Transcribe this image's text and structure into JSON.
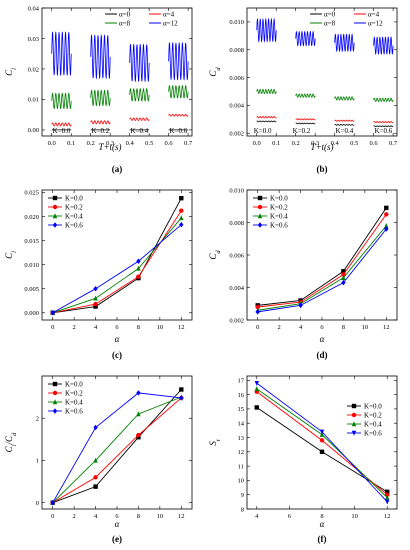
{
  "chart_data": [
    {
      "id": "a",
      "type": "line",
      "caption": "(a)",
      "ylabel": "C_l",
      "xlabel": "T+t(s)",
      "xlim": [
        -0.05,
        0.72
      ],
      "ylim": [
        -0.002,
        0.04
      ],
      "xticks": [
        "0.0",
        "0.1",
        "0.2",
        "0.3",
        "0.4",
        "0.5",
        "0.6",
        "0.7"
      ],
      "xtick_values": [
        0,
        0.1,
        0.2,
        0.3,
        0.4,
        0.5,
        0.6,
        0.7
      ],
      "yticks": [
        "0.00",
        "0.01",
        "0.02",
        "0.03",
        "0.04"
      ],
      "ytick_values": [
        0,
        0.01,
        0.02,
        0.03,
        0.04
      ],
      "legend": [
        {
          "name": "α=0",
          "color": "#000000"
        },
        {
          "name": "α=4",
          "color": "#ff0000"
        },
        {
          "name": "α=8",
          "color": "#008000"
        },
        {
          "name": "α=12",
          "color": "#0000ff"
        }
      ],
      "k_labels": [
        {
          "text": "K=0.0",
          "x": 0.05
        },
        {
          "text": "K=0.2",
          "x": 0.25
        },
        {
          "text": "K=0.4",
          "x": 0.45
        },
        {
          "text": "K=0.6",
          "x": 0.65
        }
      ],
      "segments": [
        {
          "x0": 0.0,
          "x1": 0.1,
          "series": [
            {
              "color": "#0000ff",
              "mean": 0.025,
              "amp": 0.007,
              "cycles": 6
            },
            {
              "color": "#008000",
              "mean": 0.0095,
              "amp": 0.0025,
              "cycles": 6
            },
            {
              "color": "#ff0000",
              "mean": 0.0018,
              "amp": 0.0005,
              "cycles": 6
            },
            {
              "color": "#000000",
              "mean": 0.0,
              "amp": 0.0,
              "cycles": 6
            }
          ]
        },
        {
          "x0": 0.2,
          "x1": 0.3,
          "series": [
            {
              "color": "#0000ff",
              "mean": 0.024,
              "amp": 0.007,
              "cycles": 6
            },
            {
              "color": "#008000",
              "mean": 0.0105,
              "amp": 0.0025,
              "cycles": 6
            },
            {
              "color": "#ff0000",
              "mean": 0.0025,
              "amp": 0.0005,
              "cycles": 6
            },
            {
              "color": "#000000",
              "mean": 0.0,
              "amp": 0.0,
              "cycles": 6
            }
          ]
        },
        {
          "x0": 0.4,
          "x1": 0.5,
          "series": [
            {
              "color": "#0000ff",
              "mean": 0.022,
              "amp": 0.006,
              "cycles": 6
            },
            {
              "color": "#008000",
              "mean": 0.0115,
              "amp": 0.002,
              "cycles": 6
            },
            {
              "color": "#ff0000",
              "mean": 0.0035,
              "amp": 0.0004,
              "cycles": 6
            },
            {
              "color": "#000000",
              "mean": 0.0,
              "amp": 0.0,
              "cycles": 6
            }
          ]
        },
        {
          "x0": 0.6,
          "x1": 0.7,
          "series": [
            {
              "color": "#0000ff",
              "mean": 0.0225,
              "amp": 0.006,
              "cycles": 6
            },
            {
              "color": "#008000",
              "mean": 0.0125,
              "amp": 0.002,
              "cycles": 6
            },
            {
              "color": "#ff0000",
              "mean": 0.0048,
              "amp": 0.0003,
              "cycles": 6
            },
            {
              "color": "#000000",
              "mean": 0.0,
              "amp": 0.0,
              "cycles": 6
            }
          ]
        }
      ]
    },
    {
      "id": "b",
      "type": "line",
      "caption": "(b)",
      "ylabel": "C_d",
      "xlabel": "T+t(s)",
      "xlim": [
        -0.05,
        0.72
      ],
      "ylim": [
        0.0018,
        0.011
      ],
      "xticks": [
        "0.0",
        "0.1",
        "0.2",
        "0.3",
        "0.4",
        "0.5",
        "0.6",
        "0.7"
      ],
      "xtick_values": [
        0,
        0.1,
        0.2,
        0.3,
        0.4,
        0.5,
        0.6,
        0.7
      ],
      "yticks": [
        "0.002",
        "0.004",
        "0.006",
        "0.008",
        "0.010"
      ],
      "ytick_values": [
        0.002,
        0.004,
        0.006,
        0.008,
        0.01
      ],
      "legend": [
        {
          "name": "α=0",
          "color": "#000000"
        },
        {
          "name": "α=4",
          "color": "#ff0000"
        },
        {
          "name": "α=8",
          "color": "#008000"
        },
        {
          "name": "α=12",
          "color": "#0000ff"
        }
      ],
      "k_labels": [
        {
          "text": "K=0.0",
          "x": 0.03
        },
        {
          "text": "K=0.2",
          "x": 0.23
        },
        {
          "text": "K=0.4",
          "x": 0.45
        },
        {
          "text": "K=0.6",
          "x": 0.65
        }
      ],
      "segments": [
        {
          "x0": 0.0,
          "x1": 0.1,
          "series": [
            {
              "color": "#0000ff",
              "mean": 0.0094,
              "amp": 0.0008,
              "cycles": 7
            },
            {
              "color": "#008000",
              "mean": 0.005,
              "amp": 0.00015,
              "cycles": 7
            },
            {
              "color": "#ff0000",
              "mean": 0.00315,
              "amp": 5e-05,
              "cycles": 7
            },
            {
              "color": "#000000",
              "mean": 0.00285,
              "amp": 3e-05,
              "cycles": 7
            }
          ]
        },
        {
          "x0": 0.2,
          "x1": 0.3,
          "series": [
            {
              "color": "#0000ff",
              "mean": 0.0088,
              "amp": 0.0005,
              "cycles": 7
            },
            {
              "color": "#008000",
              "mean": 0.0047,
              "amp": 0.00012,
              "cycles": 7
            },
            {
              "color": "#ff0000",
              "mean": 0.003,
              "amp": 4e-05,
              "cycles": 7
            },
            {
              "color": "#000000",
              "mean": 0.0027,
              "amp": 3e-05,
              "cycles": 7
            }
          ]
        },
        {
          "x0": 0.4,
          "x1": 0.5,
          "series": [
            {
              "color": "#0000ff",
              "mean": 0.0085,
              "amp": 0.0006,
              "cycles": 7
            },
            {
              "color": "#008000",
              "mean": 0.0045,
              "amp": 0.00012,
              "cycles": 7
            },
            {
              "color": "#ff0000",
              "mean": 0.0029,
              "amp": 4e-05,
              "cycles": 7
            },
            {
              "color": "#000000",
              "mean": 0.0026,
              "amp": 3e-05,
              "cycles": 7
            }
          ]
        },
        {
          "x0": 0.6,
          "x1": 0.7,
          "series": [
            {
              "color": "#0000ff",
              "mean": 0.0083,
              "amp": 0.0006,
              "cycles": 7
            },
            {
              "color": "#008000",
              "mean": 0.0044,
              "amp": 0.00012,
              "cycles": 7
            },
            {
              "color": "#ff0000",
              "mean": 0.0028,
              "amp": 4e-05,
              "cycles": 7
            },
            {
              "color": "#000000",
              "mean": 0.0025,
              "amp": 3e-05,
              "cycles": 7
            }
          ]
        }
      ]
    },
    {
      "id": "c",
      "type": "line",
      "caption": "(c)",
      "ylabel": "C_l",
      "xlabel": "α",
      "xlim": [
        -1,
        13
      ],
      "ylim": [
        -0.0015,
        0.0255
      ],
      "xticks": [
        "0",
        "2",
        "4",
        "6",
        "8",
        "10",
        "12"
      ],
      "xtick_values": [
        0,
        2,
        4,
        6,
        8,
        10,
        12
      ],
      "yticks": [
        "0.000",
        "0.005",
        "0.010",
        "0.015",
        "0.020",
        "0.025"
      ],
      "ytick_values": [
        0,
        0.005,
        0.01,
        0.015,
        0.02,
        0.025
      ],
      "legend_pos": "top-left",
      "x": [
        0,
        4,
        8,
        12
      ],
      "series": [
        {
          "name": "K=0.0",
          "color": "#000000",
          "marker": "square",
          "values": [
            0.0,
            0.0013,
            0.0072,
            0.0238
          ]
        },
        {
          "name": "K=0.2",
          "color": "#ff0000",
          "marker": "circle",
          "values": [
            0.0,
            0.0018,
            0.0075,
            0.0212
          ]
        },
        {
          "name": "K=0.4",
          "color": "#008000",
          "marker": "triangle",
          "values": [
            0.0,
            0.003,
            0.0092,
            0.0197
          ]
        },
        {
          "name": "K=0.6",
          "color": "#0000ff",
          "marker": "diamond",
          "values": [
            0.0,
            0.005,
            0.0107,
            0.0183
          ]
        }
      ]
    },
    {
      "id": "d",
      "type": "line",
      "caption": "(d)",
      "ylabel": "C_d",
      "xlabel": "α",
      "xlim": [
        -1,
        13
      ],
      "ylim": [
        0.002,
        0.01
      ],
      "xticks": [
        "0",
        "2",
        "4",
        "6",
        "8",
        "10",
        "12"
      ],
      "xtick_values": [
        0,
        2,
        4,
        6,
        8,
        10,
        12
      ],
      "yticks": [
        "0.002",
        "0.004",
        "0.006",
        "0.008",
        "0.010"
      ],
      "ytick_values": [
        0.002,
        0.004,
        0.006,
        0.008,
        0.01
      ],
      "legend_pos": "top-left",
      "x": [
        0,
        4,
        8,
        12
      ],
      "series": [
        {
          "name": "K=0.0",
          "color": "#000000",
          "marker": "square",
          "values": [
            0.0029,
            0.0032,
            0.005,
            0.0089
          ]
        },
        {
          "name": "K=0.2",
          "color": "#ff0000",
          "marker": "circle",
          "values": [
            0.0028,
            0.0031,
            0.0048,
            0.0085
          ]
        },
        {
          "name": "K=0.4",
          "color": "#008000",
          "marker": "triangle",
          "values": [
            0.0026,
            0.003,
            0.0046,
            0.0078
          ]
        },
        {
          "name": "K=0.6",
          "color": "#0000ff",
          "marker": "diamond",
          "values": [
            0.0025,
            0.0029,
            0.0043,
            0.0076
          ]
        }
      ]
    },
    {
      "id": "e",
      "type": "line",
      "caption": "(e)",
      "ylabel": "C_l/C_d",
      "xlabel": "α",
      "xlim": [
        -1,
        13
      ],
      "ylim": [
        -0.15,
        3.0
      ],
      "xticks": [
        "0",
        "2",
        "4",
        "6",
        "8",
        "10",
        "12"
      ],
      "xtick_values": [
        0,
        2,
        4,
        6,
        8,
        10,
        12
      ],
      "yticks": [
        "0",
        "1",
        "2"
      ],
      "ytick_values": [
        0,
        1,
        2
      ],
      "legend_pos": "top-left",
      "x": [
        0,
        4,
        8,
        12
      ],
      "series": [
        {
          "name": "K=0.0",
          "color": "#000000",
          "marker": "square",
          "values": [
            0.0,
            0.38,
            1.55,
            2.68
          ]
        },
        {
          "name": "K=0.2",
          "color": "#ff0000",
          "marker": "circle",
          "values": [
            0.0,
            0.6,
            1.6,
            2.48
          ]
        },
        {
          "name": "K=0.4",
          "color": "#008000",
          "marker": "triangle",
          "values": [
            0.0,
            1.0,
            2.1,
            2.5
          ]
        },
        {
          "name": "K=0.6",
          "color": "#0000ff",
          "marker": "diamond",
          "values": [
            0.0,
            1.78,
            2.6,
            2.48
          ]
        }
      ]
    },
    {
      "id": "f",
      "type": "line",
      "caption": "(f)",
      "ylabel": "S_t",
      "xlabel": "α",
      "xlim": [
        3.4,
        12.6
      ],
      "ylim": [
        8.0,
        17.3
      ],
      "xticks": [
        "4",
        "6",
        "8",
        "10",
        "12"
      ],
      "xtick_values": [
        4,
        6,
        8,
        10,
        12
      ],
      "yticks": [
        "8",
        "9",
        "10",
        "11",
        "12",
        "13",
        "14",
        "15",
        "16",
        "17"
      ],
      "ytick_values": [
        8,
        9,
        10,
        11,
        12,
        13,
        14,
        15,
        16,
        17
      ],
      "legend_pos": "top-right",
      "x": [
        4,
        8,
        12
      ],
      "series": [
        {
          "name": "K=0.0",
          "color": "#000000",
          "marker": "square",
          "values": [
            15.1,
            12.0,
            9.2
          ]
        },
        {
          "name": "K=0.2",
          "color": "#ff0000",
          "marker": "circle",
          "values": [
            16.2,
            12.8,
            9.0
          ]
        },
        {
          "name": "K=0.4",
          "color": "#008000",
          "marker": "triangle",
          "values": [
            16.4,
            13.2,
            8.8
          ]
        },
        {
          "name": "K=0.6",
          "color": "#0000ff",
          "marker": "triangledown",
          "values": [
            16.8,
            13.4,
            8.5
          ]
        }
      ]
    }
  ]
}
